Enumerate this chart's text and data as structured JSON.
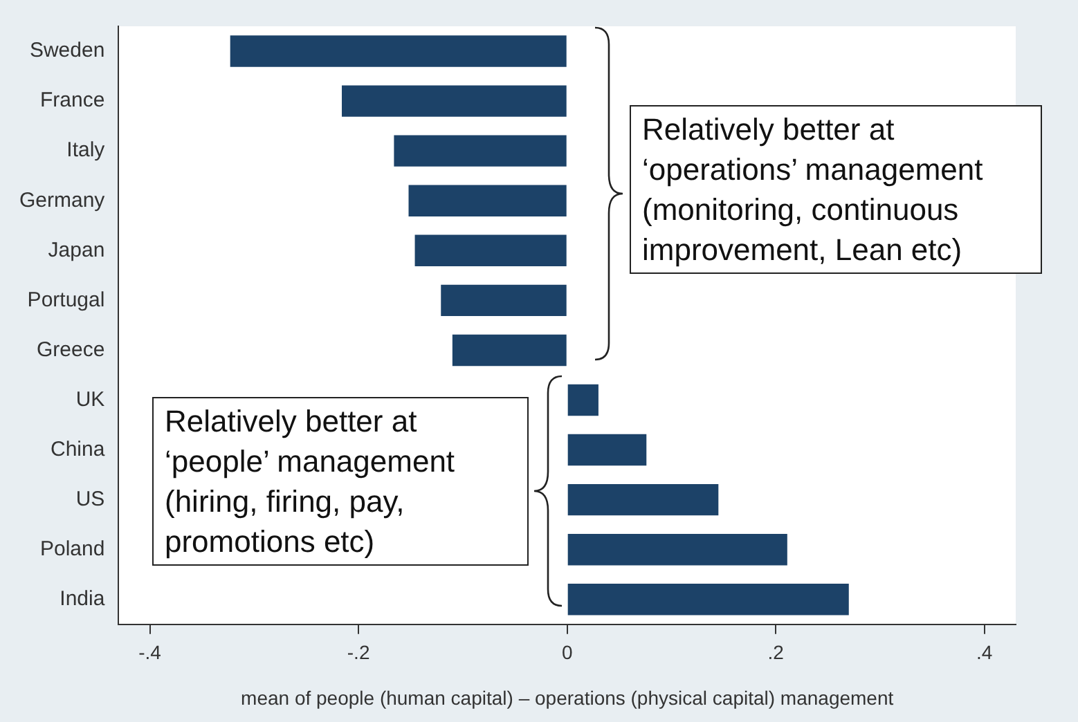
{
  "chart_data": {
    "type": "bar",
    "orientation": "horizontal",
    "xlabel": "mean of people (human capital) – operations (physical capital) management",
    "categories": [
      "Sweden",
      "France",
      "Italy",
      "Germany",
      "Japan",
      "Portugal",
      "Greece",
      "UK",
      "China",
      "US",
      "Poland",
      "India"
    ],
    "values": [
      -0.323,
      -0.216,
      -0.166,
      -0.152,
      -0.146,
      -0.121,
      -0.11,
      0.03,
      0.076,
      0.145,
      0.211,
      0.27
    ],
    "color": "#1c4268",
    "xlim": [
      -0.43,
      0.43
    ],
    "xticks": [
      {
        "value": -0.4,
        "label": "-.4"
      },
      {
        "value": -0.2,
        "label": "-.2"
      },
      0,
      {
        "value": 0.2,
        "label": ".2"
      },
      {
        "value": 0.4,
        "label": ".4"
      }
    ],
    "grid": false,
    "legend": false,
    "annotations": [
      "Relatively better at ‘operations’ management (monitoring, continuous improvement, Lean etc)",
      "Relatively better at ‘people’ management (hiring, firing, pay, promotions etc)"
    ]
  }
}
